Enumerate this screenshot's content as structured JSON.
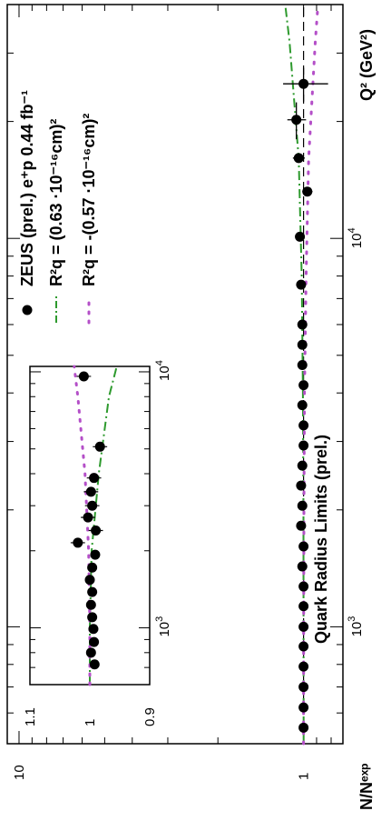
{
  "chart_data": [
    {
      "type": "scatter",
      "title": "Quark Radius Limits (prel.)",
      "xlabel": "Q² (GeV²)",
      "ylabel": "N/Nᵉˣᵖ",
      "x_scale": "log",
      "y_scale": "log",
      "xlim": [
        500,
        40000
      ],
      "ylim": [
        0.8,
        11
      ],
      "x_tick_labels": [
        {
          "base": "10",
          "exp": "3"
        },
        {
          "base": "10",
          "exp": "4"
        }
      ],
      "y_tick_labels": [
        "1",
        "10"
      ],
      "legend": [
        {
          "marker": "filled-circle",
          "text": "ZEUS (prel.) e⁺p 0.44 fb⁻¹"
        },
        {
          "marker": "dash-dot",
          "color": "#2e9a2e",
          "text": "R²q =  (0.63 ·10⁻¹⁶cm)²"
        },
        {
          "marker": "dotted",
          "color": "#b44fc8",
          "text": "R²q = -(0.57 ·10⁻¹⁶cm)²"
        }
      ],
      "legend_placement": "top-left",
      "series": [
        {
          "name": "ZEUS (prel.) e⁺p 0.44 fb⁻¹",
          "x": [
            550,
            620,
            700,
            790,
            890,
            1000,
            1130,
            1270,
            1430,
            1610,
            1820,
            2050,
            2310,
            2600,
            2930,
            3300,
            3720,
            4190,
            4720,
            5320,
            6000,
            7600,
            10100,
            13200,
            16100,
            20200,
            25000
          ],
          "y": [
            1.0,
            1.0,
            1.0,
            1.0,
            1.0,
            1.0,
            1.0,
            1.0,
            1.01,
            1.0,
            1.02,
            1.01,
            1.02,
            1.01,
            1.0,
            1.0,
            1.01,
            1.0,
            1.01,
            1.01,
            1.01,
            1.02,
            1.03,
            0.97,
            1.04,
            1.06,
            1.0
          ],
          "yerr": [
            0.01,
            0.01,
            0.01,
            0.01,
            0.01,
            0.01,
            0.01,
            0.01,
            0.01,
            0.01,
            0.01,
            0.01,
            0.01,
            0.01,
            0.01,
            0.01,
            0.02,
            0.02,
            0.02,
            0.02,
            0.02,
            0.02,
            0.03,
            0.04,
            0.05,
            0.08,
            0.18
          ]
        },
        {
          "name": "R²q =  (0.63 ·10⁻¹⁶cm)²",
          "x": [
            500,
            1000,
            2000,
            4000,
            8000,
            16000,
            32000,
            40000
          ],
          "y": [
            0.999,
            1.0,
            1.001,
            1.005,
            1.015,
            1.04,
            1.12,
            1.16
          ]
        },
        {
          "name": "R²q = -(0.57 ·10⁻¹⁶cm)²",
          "x": [
            500,
            1000,
            2000,
            4000,
            8000,
            16000,
            32000,
            40000
          ],
          "y": [
            1.0,
            0.999,
            0.997,
            0.993,
            0.98,
            0.96,
            0.91,
            0.89
          ]
        }
      ]
    },
    {
      "type": "scatter",
      "title": "",
      "x_scale": "log",
      "xlim": [
        600,
        10500
      ],
      "ylim": [
        0.9,
        1.1
      ],
      "x_tick_labels": [
        {
          "base": "10",
          "exp": "3"
        },
        {
          "base": "10",
          "exp": "4"
        }
      ],
      "y_tick_labels": [
        "0.9",
        "1",
        "1.1"
      ],
      "series": [
        {
          "x": [
            720,
            800,
            880,
            990,
            1100,
            1230,
            1380,
            1540,
            1720,
            1930,
            2150,
            2400,
            2700,
            3000,
            3400,
            3850,
            5100,
            9600
          ],
          "y": [
            0.992,
            0.998,
            0.993,
            0.994,
            0.996,
            0.998,
            0.996,
            1.0,
            0.996,
            0.991,
            1.02,
            0.99,
            1.003,
            0.996,
            0.998,
            0.993,
            0.983,
            1.01
          ]
        },
        {
          "x": [
            600,
            1000,
            2000,
            4000,
            8000,
            10500
          ],
          "y": [
            1.0,
            1.0,
            0.997,
            0.985,
            0.968,
            0.955
          ]
        },
        {
          "x": [
            600,
            1000,
            2000,
            4000,
            8000,
            10500
          ],
          "y": [
            1.0,
            1.0,
            1.002,
            1.008,
            1.02,
            1.026
          ]
        }
      ]
    }
  ]
}
